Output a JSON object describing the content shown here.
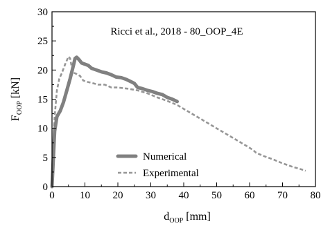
{
  "chart_data": {
    "type": "line",
    "title": "Ricci et al., 2018 - 80_OOP_4E",
    "xlabel": {
      "main": "d",
      "sub": "OOP",
      "unit": " [mm]"
    },
    "ylabel": {
      "main": "F",
      "sub": "OOP",
      "unit": " [kN]"
    },
    "xlim": [
      0,
      80
    ],
    "ylim": [
      0,
      30
    ],
    "xticks": [
      0,
      10,
      20,
      30,
      40,
      50,
      60,
      70,
      80
    ],
    "yticks": [
      0,
      5,
      10,
      15,
      20,
      25,
      30
    ],
    "grid": false,
    "legend_position": "bottom-center",
    "series": [
      {
        "name": "Numerical",
        "color": "#808080",
        "style": "solid",
        "x": [
          0,
          0.3,
          0.8,
          1.5,
          2.5,
          3.5,
          4.5,
          5.5,
          6.5,
          7.0,
          7.5,
          8.2,
          9.0,
          10.0,
          11.0,
          12.0,
          13.5,
          15.0,
          16.5,
          18.0,
          19.5,
          21.0,
          22.5,
          24.0,
          25.0,
          26.0,
          27.5,
          29.0,
          30.5,
          32.0,
          33.5,
          35.0,
          36.5,
          38.0
        ],
        "y": [
          0,
          3.5,
          9.5,
          12.0,
          13.0,
          14.5,
          16.5,
          18.5,
          20.8,
          22.0,
          22.2,
          21.8,
          21.2,
          21.0,
          20.8,
          20.3,
          20.0,
          19.7,
          19.5,
          19.2,
          18.8,
          18.7,
          18.4,
          18.0,
          17.7,
          17.0,
          16.8,
          16.5,
          16.3,
          16.0,
          15.8,
          15.3,
          15.0,
          14.6
        ]
      },
      {
        "name": "Experimental",
        "color": "#969696",
        "style": "dashed",
        "x": [
          0,
          0.3,
          0.8,
          1.5,
          2.2,
          3.0,
          4.0,
          5.0,
          5.5,
          6.0,
          6.8,
          7.5,
          8.5,
          9.5,
          10.5,
          12.0,
          14.0,
          16.0,
          18.0,
          20.0,
          23.0,
          26.0,
          29.0,
          32.0,
          35.0,
          38.0,
          41.0,
          44.0,
          47.0,
          50.0,
          53.0,
          56.0,
          59.0,
          61.0,
          62.0,
          64.0,
          67.0,
          70.0,
          73.0,
          75.5,
          77.0
        ],
        "y": [
          0,
          6.0,
          12.0,
          16.5,
          18.5,
          19.5,
          21.0,
          22.3,
          22.0,
          20.5,
          19.5,
          19.3,
          19.0,
          18.2,
          18.0,
          17.8,
          17.5,
          17.5,
          17.0,
          17.0,
          16.8,
          16.5,
          16.0,
          15.3,
          14.7,
          14.0,
          13.0,
          12.0,
          11.0,
          10.0,
          9.0,
          8.0,
          7.0,
          6.3,
          5.8,
          5.3,
          4.7,
          4.0,
          3.4,
          3.0,
          2.7
        ]
      }
    ]
  }
}
